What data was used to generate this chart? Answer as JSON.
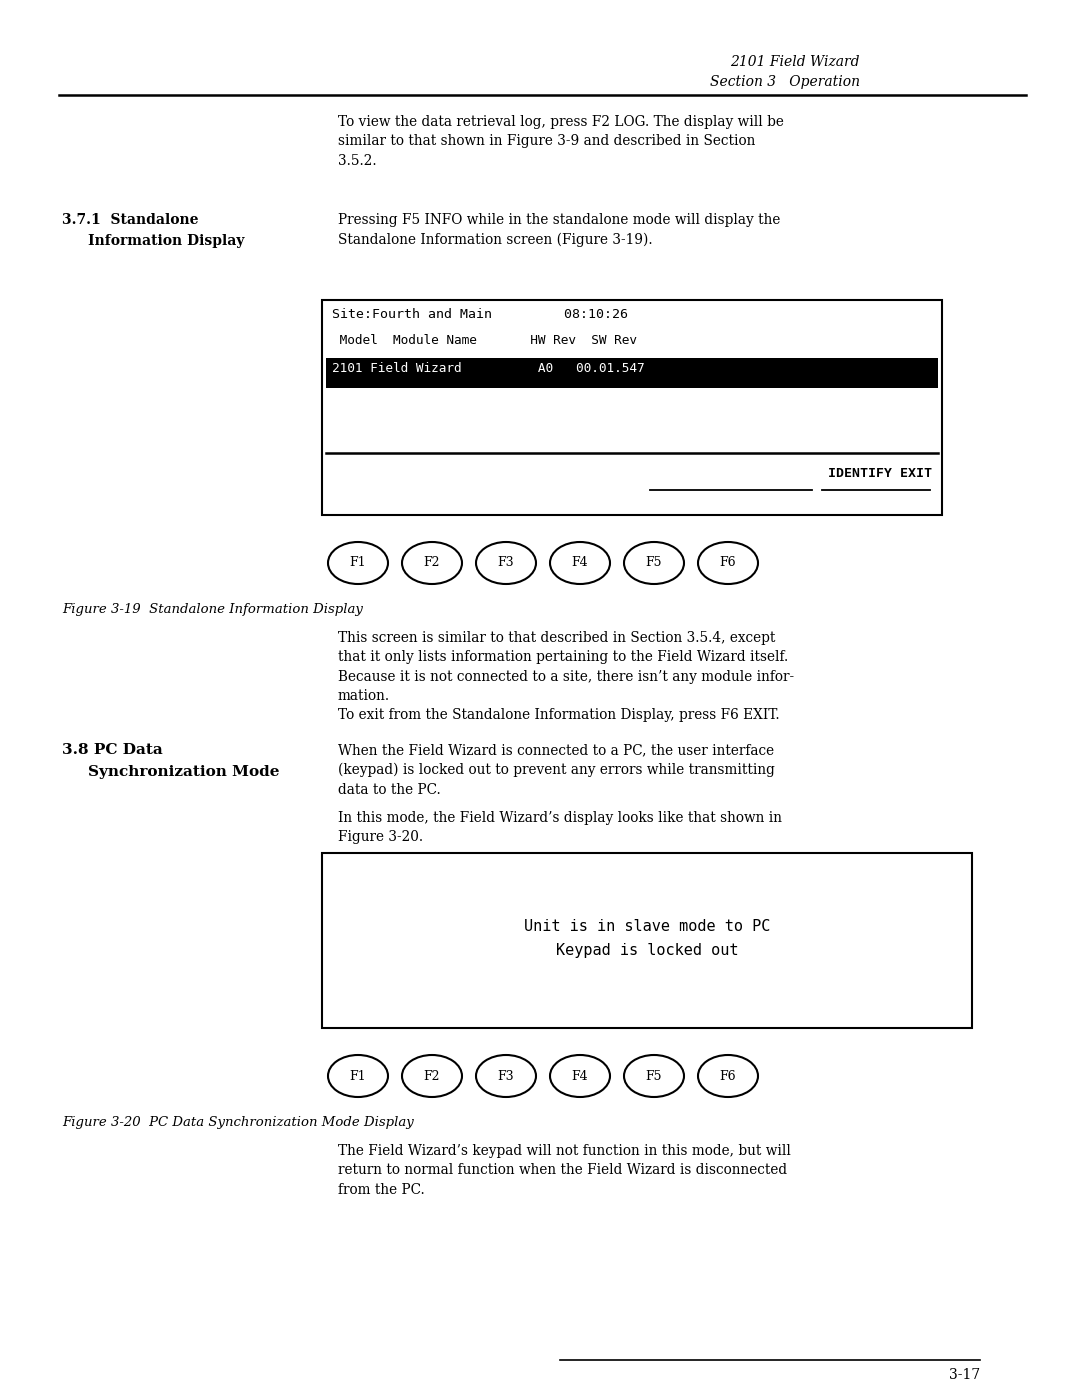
{
  "page_width": 10.8,
  "page_height": 13.97,
  "dpi": 100,
  "bg_color": "#ffffff",
  "header_line1": "2101 Field Wizard",
  "header_line2": "Section 3   Operation",
  "body_text_1": "To view the data retrieval log, press F2 LOG. The display will be\nsimilar to that shown in Figure 3-9 and described in Section\n3.5.2.",
  "section_label_371a": "3.7.1  Standalone",
  "section_label_371b": "Information Display",
  "section_text_371a": "Pressing F5 INFO while in the standalone mode will display the",
  "section_text_371b": "Standalone Information screen (Figure 3-19).",
  "screen1_line1": "Site:Fourth and Main         08:10:26",
  "screen1_line2": " Model  Module Name       HW Rev  SW Rev",
  "screen1_line3": "2101 Field Wizard          A0   00.01.547",
  "screen1_softkey": "IDENTIFY EXIT",
  "fkey_labels": [
    "F1",
    "F2",
    "F3",
    "F4",
    "F5",
    "F6"
  ],
  "figure_label_19": "Figure 3-19  Standalone Information Display",
  "body_text_2a": "This screen is similar to that described in Section 3.5.4, except\nthat it only lists information pertaining to the Field Wizard itself.\nBecause it is not connected to a site, there isn’t any module infor-\nmation.",
  "body_text_2b": "To exit from the Standalone Information Display, press F6 EXIT.",
  "section_label_38a": "3.8 PC Data",
  "section_label_38b": "Synchronization Mode",
  "section_text_38a": "When the Field Wizard is connected to a PC, the user interface\n(keypad) is locked out to prevent any errors while transmitting\ndata to the PC.",
  "section_text_38b": "In this mode, the Field Wizard’s display looks like that shown in\nFigure 3-20.",
  "screen2_line1": "Unit is in slave mode to PC",
  "screen2_line2": "Keypad is locked out",
  "figure_label_20": "Figure 3-20  PC Data Synchronization Mode Display",
  "body_text_3": "The Field Wizard’s keypad will not function in this mode, but will\nreturn to normal function when the Field Wizard is disconnected\nfrom the PC.",
  "page_number": "3-17"
}
